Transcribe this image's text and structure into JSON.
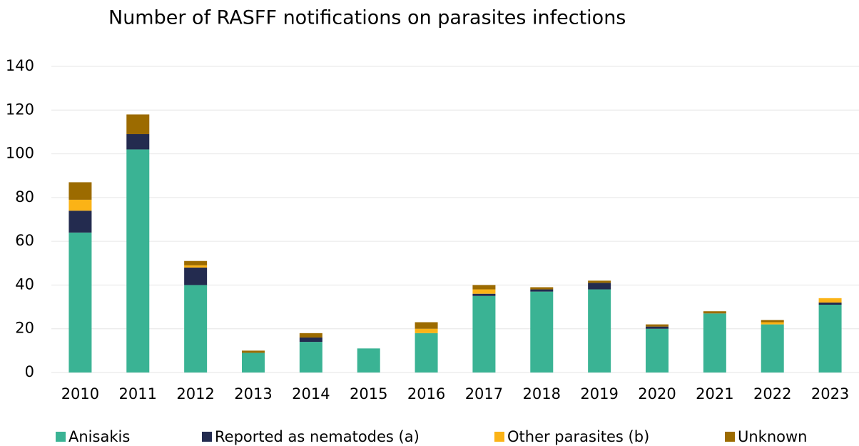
{
  "chart_data": {
    "type": "stacked_bar",
    "title": "Number of RASFF notifications on parasites infections",
    "categories": [
      "2010",
      "2011",
      "2012",
      "2013",
      "2014",
      "2015",
      "2016",
      "2017",
      "2018",
      "2019",
      "2020",
      "2021",
      "2022",
      "2023"
    ],
    "series": [
      {
        "name": "Anisakis",
        "color": "#3ab394",
        "values": [
          64,
          102,
          40,
          9,
          14,
          11,
          18,
          35,
          37,
          38,
          20,
          27,
          22,
          31
        ]
      },
      {
        "name": "Reported as nematodes (a)",
        "color": "#232b4f",
        "values": [
          10,
          7,
          8,
          0,
          2,
          0,
          0,
          1,
          1,
          3,
          1,
          0,
          0,
          1
        ]
      },
      {
        "name": "Other parasites (b)",
        "color": "#fbb316",
        "values": [
          5,
          0,
          1,
          0,
          0,
          0,
          2,
          2,
          0,
          0,
          0,
          0,
          1,
          2
        ]
      },
      {
        "name": "Unknown",
        "color": "#9c6b00",
        "values": [
          8,
          9,
          2,
          1,
          2,
          0,
          3,
          2,
          1,
          1,
          1,
          1,
          1,
          0
        ]
      }
    ],
    "ylim": [
      0,
      140
    ],
    "yticks": [
      0,
      20,
      40,
      60,
      80,
      100,
      120,
      140
    ],
    "grid": true,
    "legend": "bottom"
  }
}
